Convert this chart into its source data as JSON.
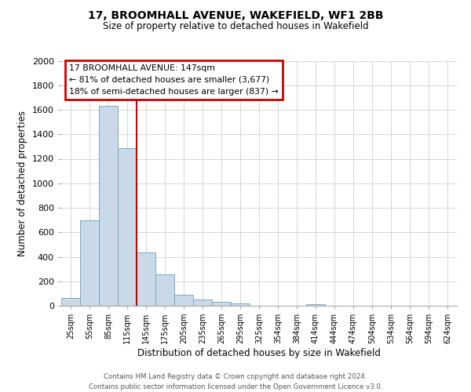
{
  "title": "17, BROOMHALL AVENUE, WAKEFIELD, WF1 2BB",
  "subtitle": "Size of property relative to detached houses in Wakefield",
  "xlabel": "Distribution of detached houses by size in Wakefield",
  "ylabel": "Number of detached properties",
  "bar_labels": [
    "25sqm",
    "55sqm",
    "85sqm",
    "115sqm",
    "145sqm",
    "175sqm",
    "205sqm",
    "235sqm",
    "265sqm",
    "295sqm",
    "325sqm",
    "354sqm",
    "384sqm",
    "414sqm",
    "444sqm",
    "474sqm",
    "504sqm",
    "534sqm",
    "564sqm",
    "594sqm",
    "624sqm"
  ],
  "bar_values": [
    65,
    695,
    1635,
    1285,
    435,
    255,
    90,
    50,
    30,
    20,
    0,
    0,
    0,
    15,
    0,
    0,
    0,
    0,
    0,
    0,
    0
  ],
  "bar_color": "#c9d9e8",
  "bar_edge_color": "#7aaabf",
  "vline_color": "#cc0000",
  "ylim": [
    0,
    2000
  ],
  "yticks": [
    0,
    200,
    400,
    600,
    800,
    1000,
    1200,
    1400,
    1600,
    1800,
    2000
  ],
  "annotation_title": "17 BROOMHALL AVENUE: 147sqm",
  "annotation_line1": "← 81% of detached houses are smaller (3,677)",
  "annotation_line2": "18% of semi-detached houses are larger (837) →",
  "annotation_box_color": "#cc0000",
  "footer_line1": "Contains HM Land Registry data © Crown copyright and database right 2024.",
  "footer_line2": "Contains public sector information licensed under the Open Government Licence v3.0.",
  "background_color": "#ffffff",
  "grid_color": "#d0d0d0"
}
